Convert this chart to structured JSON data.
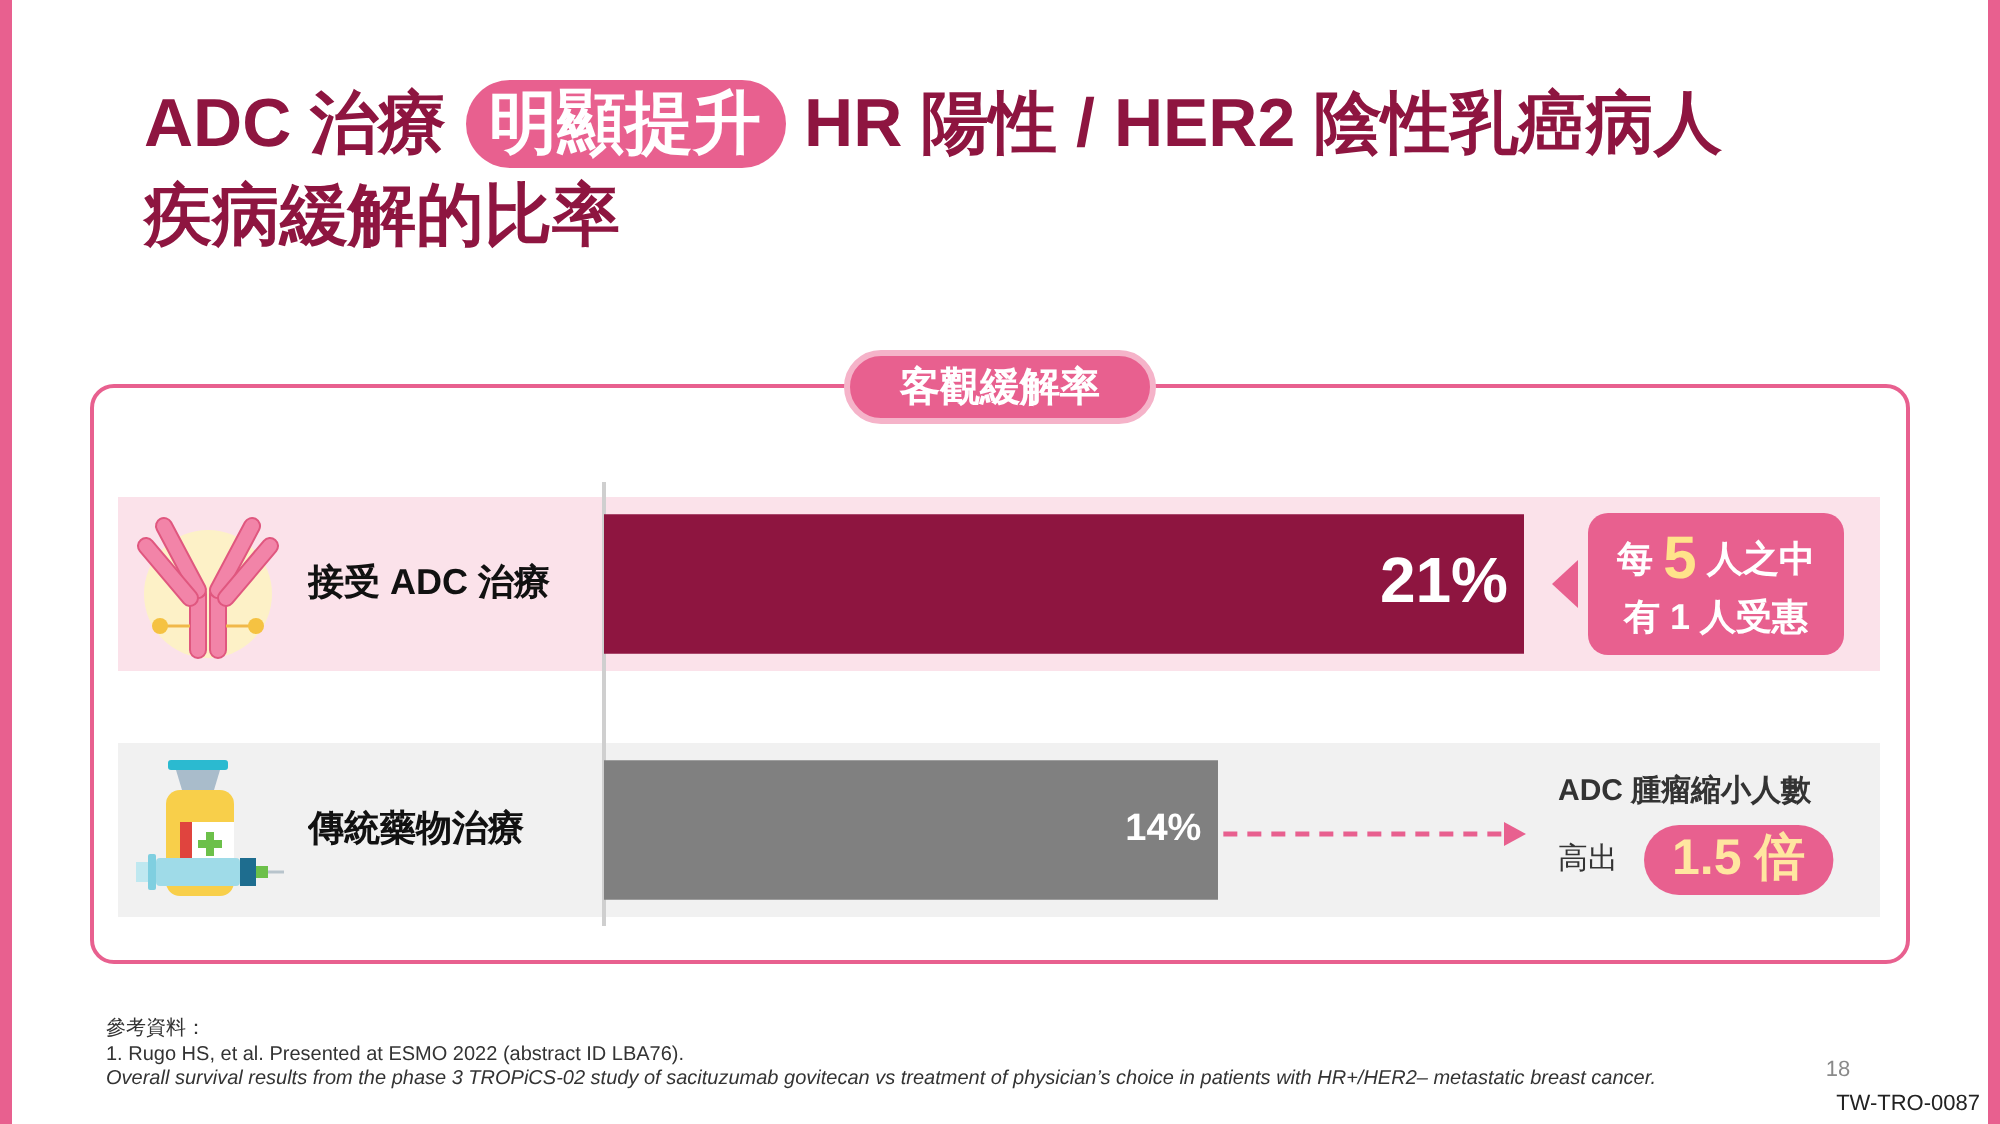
{
  "chart_data": {
    "type": "bar",
    "orientation": "horizontal",
    "title": "ADC 治療 明顯提升 HR 陽性 / HER2 陰性乳癌病人疾病緩解的比率",
    "subtitle": "客觀緩解率",
    "categories": [
      "接受 ADC 治療",
      "傳統藥物治療"
    ],
    "values": [
      21,
      14
    ],
    "colors": [
      "#8e1540",
      "#808080"
    ],
    "value_labels": [
      "21%",
      "14%"
    ],
    "bands": [
      {
        "axis": "y",
        "from": "接受 ADC 治療",
        "to": "接受 ADC 治療",
        "color": "#fbe2ea"
      },
      {
        "axis": "y",
        "from": "傳統藥物治療",
        "to": "傳統藥物治療",
        "color": "#f1f1f1"
      }
    ],
    "grid": false,
    "legend": false,
    "tick_labels": "y",
    "annotations": [
      {
        "text": "每 5 人之中有 1 人受惠",
        "x": 21,
        "y": "接受 ADC 治療"
      },
      "ADC 腫瘤縮小人數高出 1.5 倍",
      "參考資料：",
      "1. Rugo HS, et al. Presented at ESMO 2022 (abstract ID LBA76).",
      "Overall survival results from the phase 3 TROPiCS-02 study of sacituzumab govitecan vs treatment of physician’s choice in patients with HR+/HER2– metastatic breast cancer.",
      "18",
      "TW-TRO-0087"
    ]
  }
}
